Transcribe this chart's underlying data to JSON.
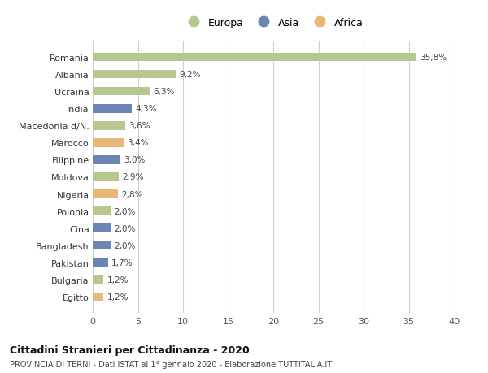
{
  "categories": [
    "Romania",
    "Albania",
    "Ucraina",
    "India",
    "Macedonia d/N.",
    "Marocco",
    "Filippine",
    "Moldova",
    "Nigeria",
    "Polonia",
    "Cina",
    "Bangladesh",
    "Pakistan",
    "Bulgaria",
    "Egitto"
  ],
  "values": [
    35.8,
    9.2,
    6.3,
    4.3,
    3.6,
    3.4,
    3.0,
    2.9,
    2.8,
    2.0,
    2.0,
    2.0,
    1.7,
    1.2,
    1.2
  ],
  "labels": [
    "35,8%",
    "9,2%",
    "6,3%",
    "4,3%",
    "3,6%",
    "3,4%",
    "3,0%",
    "2,9%",
    "2,8%",
    "2,0%",
    "2,0%",
    "2,0%",
    "1,7%",
    "1,2%",
    "1,2%"
  ],
  "continents": [
    "Europa",
    "Europa",
    "Europa",
    "Asia",
    "Europa",
    "Africa",
    "Asia",
    "Europa",
    "Africa",
    "Europa",
    "Asia",
    "Asia",
    "Asia",
    "Europa",
    "Africa"
  ],
  "colors": {
    "Europa": "#b5c98e",
    "Asia": "#6b85b5",
    "Africa": "#e8b87a"
  },
  "xlim": [
    0,
    40
  ],
  "xticks": [
    0,
    5,
    10,
    15,
    20,
    25,
    30,
    35,
    40
  ],
  "title_main": "Cittadini Stranieri per Cittadinanza - 2020",
  "title_sub": "PROVINCIA DI TERNI - Dati ISTAT al 1° gennaio 2020 - Elaborazione TUTTITALIA.IT",
  "background_color": "#ffffff",
  "grid_color": "#d0d0d0",
  "bar_height": 0.5
}
